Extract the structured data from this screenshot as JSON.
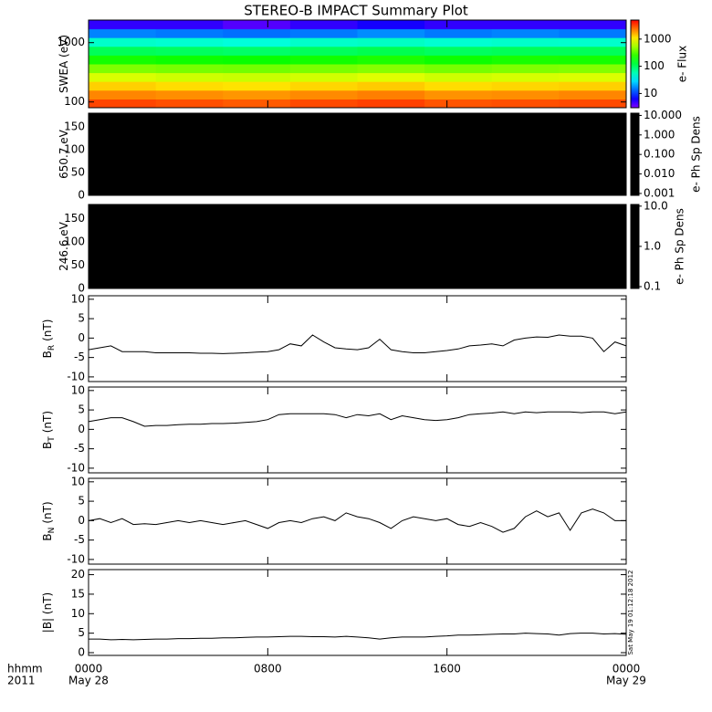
{
  "chart_data": [
    {
      "type": "heatmap",
      "title": "STEREO-B IMPACT Summary Plot",
      "ylabel": "SWEA (eV)",
      "log": true,
      "ylim": [
        80,
        2400
      ],
      "yticks": [
        100,
        1000
      ],
      "x_bins": [
        0,
        3,
        6,
        9,
        12,
        15,
        18,
        21,
        24
      ],
      "energy_bins": [
        80,
        112,
        158,
        222,
        312,
        438,
        616,
        866,
        1217,
        1710,
        2400
      ],
      "flux": [
        [
          3200,
          2100,
          1300,
          750,
          420,
          210,
          105,
          50,
          16,
          5
        ],
        [
          3000,
          2000,
          1200,
          700,
          400,
          200,
          100,
          48,
          15,
          5
        ],
        [
          2800,
          1900,
          1150,
          680,
          390,
          195,
          95,
          45,
          14,
          4
        ],
        [
          3100,
          2050,
          1250,
          720,
          410,
          205,
          102,
          50,
          15,
          5
        ],
        [
          3300,
          2200,
          1350,
          780,
          440,
          220,
          110,
          52,
          17,
          6
        ],
        [
          2900,
          1950,
          1200,
          700,
          400,
          200,
          100,
          48,
          15,
          5
        ],
        [
          3000,
          2000,
          1250,
          740,
          420,
          215,
          105,
          50,
          16,
          5
        ],
        [
          3100,
          2100,
          1300,
          760,
          430,
          210,
          104,
          49,
          15,
          5
        ]
      ],
      "colorbar": {
        "colormap": "rainbow",
        "log": true,
        "clim": [
          3,
          5000
        ],
        "ticks": [
          10,
          100,
          1000
        ],
        "label": "e- Flux"
      }
    },
    {
      "type": "image",
      "ylabel": "650.7 eV",
      "background": "#000000",
      "ylim": [
        0,
        180
      ],
      "yticks": [
        0,
        50,
        100,
        150
      ],
      "colorbar": {
        "colormap": "black",
        "log": true,
        "clim": [
          0.0008,
          13
        ],
        "ticks": [
          {
            "value": 10,
            "label": "10.000"
          },
          {
            "value": 1,
            "label": "1.000"
          },
          {
            "value": 0.1,
            "label": "0.100"
          },
          {
            "value": 0.01,
            "label": "0.010"
          },
          {
            "value": 0.001,
            "label": "0.001"
          }
        ],
        "label": "e- Ph Sp Dens"
      }
    },
    {
      "type": "image",
      "ylabel": "246.6 eV",
      "background": "#000000",
      "ylim": [
        0,
        180
      ],
      "yticks": [
        0,
        50,
        100,
        150
      ],
      "colorbar": {
        "colormap": "black",
        "log": true,
        "clim": [
          0.09,
          11
        ],
        "ticks": [
          {
            "value": 10,
            "label": "10.0"
          },
          {
            "value": 1,
            "label": "1.0"
          },
          0.1
        ],
        "label": "e- Ph Sp Dens"
      }
    },
    {
      "type": "line",
      "ylabel": "B",
      "ylabel_sub": "R",
      "ylabel_unit": "(nT)",
      "color": "#000000",
      "ylim": [
        -11.2,
        10.9
      ],
      "yticks": [
        -10,
        -5,
        0,
        5,
        10
      ],
      "x": [
        0,
        0.5,
        1,
        1.5,
        2,
        2.5,
        3,
        3.5,
        4,
        4.5,
        5,
        5.5,
        6,
        6.5,
        7,
        7.5,
        8,
        8.5,
        9,
        9.5,
        10,
        10.5,
        11,
        11.5,
        12,
        12.5,
        13,
        13.5,
        14,
        14.5,
        15,
        15.5,
        16,
        16.5,
        17,
        17.5,
        18,
        18.5,
        19,
        19.5,
        20,
        20.5,
        21,
        21.5,
        22,
        22.5,
        23,
        23.5,
        24
      ],
      "values": [
        -3,
        -2.5,
        -2,
        -3.5,
        -3.5,
        -3.5,
        -3.8,
        -3.8,
        -3.8,
        -3.8,
        -3.9,
        -3.9,
        -4,
        -3.9,
        -3.8,
        -3.6,
        -3.5,
        -3,
        -1.5,
        -2,
        0.8,
        -1,
        -2.5,
        -2.8,
        -3,
        -2.5,
        -0.3,
        -3,
        -3.5,
        -3.8,
        -3.8,
        -3.5,
        -3.2,
        -2.8,
        -2,
        -1.8,
        -1.5,
        -2,
        -0.5,
        0,
        0.3,
        0.2,
        0.8,
        0.5,
        0.5,
        0,
        -3.5,
        -1,
        -2
      ]
    },
    {
      "type": "line",
      "ylabel": "B",
      "ylabel_sub": "T",
      "ylabel_unit": "(nT)",
      "color": "#000000",
      "ylim": [
        -11.2,
        10.9
      ],
      "yticks": [
        -10,
        -5,
        0,
        5,
        10
      ],
      "x": [
        0,
        0.5,
        1,
        1.5,
        2,
        2.5,
        3,
        3.5,
        4,
        4.5,
        5,
        5.5,
        6,
        6.5,
        7,
        7.5,
        8,
        8.5,
        9,
        9.5,
        10,
        10.5,
        11,
        11.5,
        12,
        12.5,
        13,
        13.5,
        14,
        14.5,
        15,
        15.5,
        16,
        16.5,
        17,
        17.5,
        18,
        18.5,
        19,
        19.5,
        20,
        20.5,
        21,
        21.5,
        22,
        22.5,
        23,
        23.5,
        24
      ],
      "values": [
        2,
        2.5,
        3,
        3,
        2,
        0.8,
        1,
        1,
        1.2,
        1.3,
        1.3,
        1.5,
        1.5,
        1.6,
        1.8,
        2,
        2.5,
        3.8,
        4,
        4,
        4,
        4,
        3.8,
        3,
        3.8,
        3.5,
        4,
        2.5,
        3.5,
        3,
        2.5,
        2.3,
        2.5,
        3,
        3.8,
        4,
        4.2,
        4.5,
        4,
        4.5,
        4.3,
        4.5,
        4.5,
        4.5,
        4.3,
        4.5,
        4.5,
        4,
        4.5
      ]
    },
    {
      "type": "line",
      "ylabel": "B",
      "ylabel_sub": "N",
      "ylabel_unit": "(nT)",
      "color": "#000000",
      "ylim": [
        -11.2,
        10.9
      ],
      "yticks": [
        -10,
        -5,
        0,
        5,
        10
      ],
      "x": [
        0,
        0.5,
        1,
        1.5,
        2,
        2.5,
        3,
        3.5,
        4,
        4.5,
        5,
        5.5,
        6,
        6.5,
        7,
        7.5,
        8,
        8.5,
        9,
        9.5,
        10,
        10.5,
        11,
        11.5,
        12,
        12.5,
        13,
        13.5,
        14,
        14.5,
        15,
        15.5,
        16,
        16.5,
        17,
        17.5,
        18,
        18.5,
        19,
        19.5,
        20,
        20.5,
        21,
        21.5,
        22,
        22.5,
        23,
        23.5,
        24
      ],
      "values": [
        0,
        0.5,
        -0.5,
        0.5,
        -1,
        -0.8,
        -1,
        -0.5,
        0,
        -0.5,
        0,
        -0.5,
        -1,
        -0.5,
        0,
        -1,
        -2,
        -0.5,
        0,
        -0.5,
        0.5,
        1,
        0,
        2,
        1,
        0.5,
        -0.5,
        -2,
        0,
        1,
        0.5,
        0,
        0.5,
        -1,
        -1.5,
        -0.5,
        -1.5,
        -3,
        -2,
        1,
        2.5,
        1,
        2,
        -2.5,
        2,
        3,
        2,
        0,
        0
      ]
    },
    {
      "type": "line",
      "ylabel": "|B| (nT)",
      "color": "#000000",
      "ylim": [
        -0.7,
        21.3
      ],
      "yticks": [
        0,
        5,
        10,
        15,
        20
      ],
      "x": [
        0,
        0.5,
        1,
        1.5,
        2,
        2.5,
        3,
        3.5,
        4,
        4.5,
        5,
        5.5,
        6,
        6.5,
        7,
        7.5,
        8,
        8.5,
        9,
        9.5,
        10,
        10.5,
        11,
        11.5,
        12,
        12.5,
        13,
        13.5,
        14,
        14.5,
        15,
        15.5,
        16,
        16.5,
        17,
        17.5,
        18,
        18.5,
        19,
        19.5,
        20,
        20.5,
        21,
        21.5,
        22,
        22.5,
        23,
        23.5,
        24
      ],
      "values": [
        3.5,
        3.5,
        3.3,
        3.4,
        3.3,
        3.4,
        3.5,
        3.5,
        3.6,
        3.6,
        3.7,
        3.7,
        3.8,
        3.8,
        3.9,
        4,
        4,
        4.1,
        4.2,
        4.2,
        4.1,
        4.1,
        4,
        4.2,
        4,
        3.8,
        3.5,
        3.8,
        4,
        4,
        4,
        4.2,
        4.3,
        4.5,
        4.5,
        4.6,
        4.7,
        4.8,
        4.8,
        5,
        4.9,
        4.8,
        4.5,
        4.9,
        5,
        5,
        4.8,
        4.9,
        4.7
      ],
      "xlim": [
        0,
        24
      ],
      "xticks": [
        {
          "value": 0,
          "label": "0000"
        },
        {
          "value": 8,
          "label": "0800"
        },
        {
          "value": 16,
          "label": "1600"
        },
        {
          "value": 24,
          "label": "0000"
        }
      ],
      "x_dates": [
        {
          "value": 0,
          "label": "May 28"
        },
        {
          "value": 24,
          "label": "May 29"
        }
      ],
      "xlabel": "hhmm",
      "year": "2011",
      "timestamp": "Sat May 19 01:12:18 2012"
    }
  ]
}
